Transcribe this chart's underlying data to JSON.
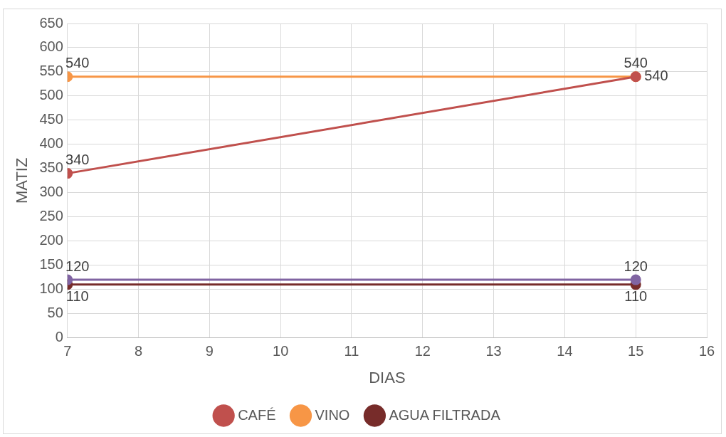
{
  "chart_data": {
    "type": "line",
    "xlabel": "DIAS",
    "ylabel": "MATIZ",
    "x": [
      7,
      15
    ],
    "series": [
      {
        "name": "CAFÉ",
        "color": "#c0504d",
        "values": [
          340,
          540
        ]
      },
      {
        "color": "#8064a2",
        "values": [
          120,
          120
        ]
      },
      {
        "name": "VINO",
        "color": "#f79646",
        "values": [
          540,
          540
        ]
      },
      {
        "name": "AGUA FILTRADA",
        "color": "#772c2a",
        "values": [
          110,
          110
        ]
      }
    ],
    "xlim": [
      7,
      16
    ],
    "xticks": [
      7,
      8,
      9,
      10,
      11,
      12,
      13,
      14,
      15,
      16
    ],
    "ylim": [
      0,
      650
    ],
    "yticks": [
      0,
      50,
      100,
      150,
      200,
      250,
      300,
      350,
      400,
      450,
      500,
      550,
      600,
      650
    ],
    "grid": true,
    "legend": "bottom",
    "marker": "circle",
    "line_style": "solid",
    "data_labels": true
  }
}
